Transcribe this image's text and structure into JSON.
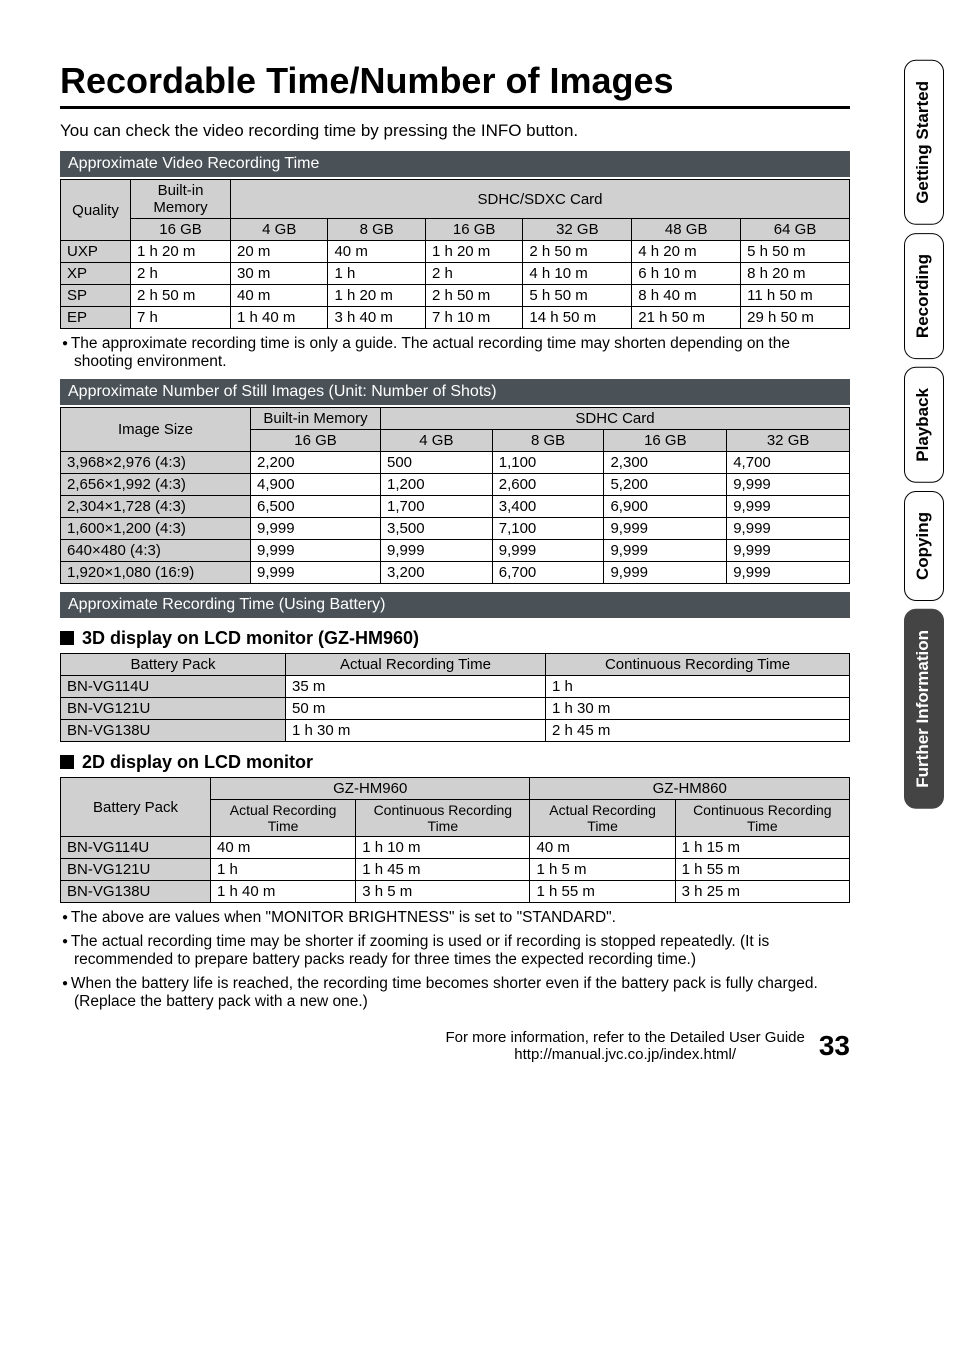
{
  "sidebar": {
    "tabs": [
      {
        "label": "Getting Started",
        "active": false
      },
      {
        "label": "Recording",
        "active": false
      },
      {
        "label": "Playback",
        "active": false
      },
      {
        "label": "Copying",
        "active": false
      },
      {
        "label": "Further Information",
        "active": true
      }
    ]
  },
  "title": "Recordable Time/Number of Images",
  "intro": "You can check the video recording time by pressing the INFO button.",
  "videoSection": {
    "header": "Approximate Video Recording Time",
    "cornerLabel": "Quality",
    "builtinLabel": "Built-in Memory",
    "cardLabel": "SDHC/SDXC Card",
    "builtinSize": "16 GB",
    "cardSizes": [
      "4 GB",
      "8 GB",
      "16 GB",
      "32 GB",
      "48 GB",
      "64 GB"
    ],
    "rows": [
      {
        "q": "UXP",
        "builtin": "1 h 20 m",
        "c": [
          "20 m",
          "40 m",
          "1 h 20 m",
          "2 h 50 m",
          "4 h 20 m",
          "5 h 50 m"
        ]
      },
      {
        "q": "XP",
        "builtin": "2 h",
        "c": [
          "30 m",
          "1 h",
          "2 h",
          "4 h 10 m",
          "6 h 10 m",
          "8 h 20 m"
        ]
      },
      {
        "q": "SP",
        "builtin": "2 h 50 m",
        "c": [
          "40 m",
          "1 h 20 m",
          "2 h 50 m",
          "5 h 50 m",
          "8 h 40 m",
          "11 h 50 m"
        ]
      },
      {
        "q": "EP",
        "builtin": "7 h",
        "c": [
          "1 h 40 m",
          "3 h 40 m",
          "7 h 10 m",
          "14 h 50 m",
          "21 h 50 m",
          "29 h 50 m"
        ]
      }
    ],
    "note": "The approximate recording time is only a guide. The actual recording time may shorten depending on the shooting environment."
  },
  "stillSection": {
    "header": "Approximate Number of Still Images (Unit: Number of Shots)",
    "cornerLabel": "Image Size",
    "builtinLabel": "Built-in Memory",
    "cardLabel": "SDHC Card",
    "builtinSize": "16 GB",
    "cardSizes": [
      "4 GB",
      "8 GB",
      "16 GB",
      "32 GB"
    ],
    "rows": [
      {
        "size": "3,968×2,976 (4:3)",
        "builtin": "2,200",
        "c": [
          "500",
          "1,100",
          "2,300",
          "4,700"
        ]
      },
      {
        "size": "2,656×1,992 (4:3)",
        "builtin": "4,900",
        "c": [
          "1,200",
          "2,600",
          "5,200",
          "9,999"
        ]
      },
      {
        "size": "2,304×1,728 (4:3)",
        "builtin": "6,500",
        "c": [
          "1,700",
          "3,400",
          "6,900",
          "9,999"
        ]
      },
      {
        "size": "1,600×1,200 (4:3)",
        "builtin": "9,999",
        "c": [
          "3,500",
          "7,100",
          "9,999",
          "9,999"
        ]
      },
      {
        "size": "640×480 (4:3)",
        "builtin": "9,999",
        "c": [
          "9,999",
          "9,999",
          "9,999",
          "9,999"
        ]
      },
      {
        "size": "1,920×1,080 (16:9)",
        "builtin": "9,999",
        "c": [
          "3,200",
          "6,700",
          "9,999",
          "9,999"
        ]
      }
    ]
  },
  "batterySection": {
    "header": "Approximate Recording Time (Using Battery)",
    "threeDTitle": "3D display on LCD monitor (GZ-HM960)",
    "threeDHeaders": [
      "Battery Pack",
      "Actual Recording Time",
      "Continuous Recording Time"
    ],
    "threeDRows": [
      {
        "pack": "BN-VG114U",
        "actual": "35 m",
        "cont": "1 h"
      },
      {
        "pack": "BN-VG121U",
        "actual": "50 m",
        "cont": "1 h 30 m"
      },
      {
        "pack": "BN-VG138U",
        "actual": "1 h 30 m",
        "cont": "2 h 45 m"
      }
    ],
    "twoDTitle": "2D display on LCD monitor",
    "twoDModels": [
      "GZ-HM960",
      "GZ-HM860"
    ],
    "twoDSubHeaders": [
      "Actual Recording Time",
      "Continuous Recording Time",
      "Actual Recording Time",
      "Continuous Recording Time"
    ],
    "twoDRows": [
      {
        "pack": "BN-VG114U",
        "v": [
          "40 m",
          "1 h 10 m",
          "40 m",
          "1 h 15 m"
        ]
      },
      {
        "pack": "BN-VG121U",
        "v": [
          "1 h",
          "1 h 45 m",
          "1 h 5 m",
          "1 h 55 m"
        ]
      },
      {
        "pack": "BN-VG138U",
        "v": [
          "1 h 40 m",
          "3 h 5 m",
          "1 h 55 m",
          "3 h 25 m"
        ]
      }
    ],
    "notes": [
      "The above are values when \"MONITOR BRIGHTNESS\" is set to \"STANDARD\".",
      "The actual recording time may be shorter if zooming is used or if recording is stopped repeatedly. (It is recommended to prepare battery packs ready for three times the expected recording time.)",
      "When the battery life is reached, the recording time becomes shorter even if the battery pack is fully charged. (Replace the battery pack with a new one.)"
    ]
  },
  "footer": {
    "line1": "For more information, refer to the Detailed User Guide",
    "line2": "http://manual.jvc.co.jp/index.html/",
    "page": "33"
  }
}
